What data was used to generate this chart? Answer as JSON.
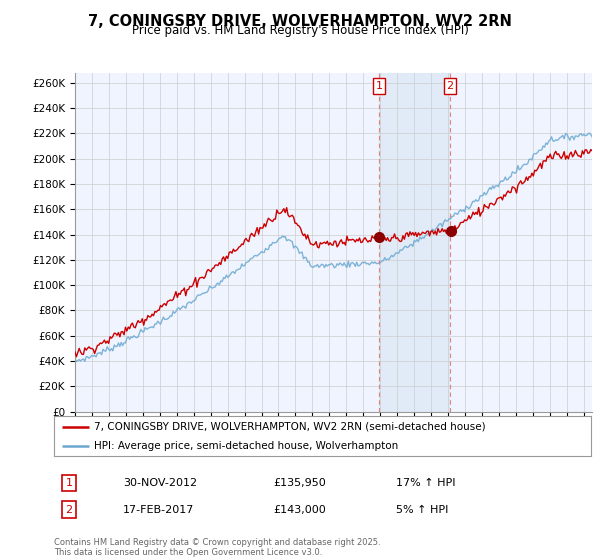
{
  "title": "7, CONINGSBY DRIVE, WOLVERHAMPTON, WV2 2RN",
  "subtitle": "Price paid vs. HM Land Registry's House Price Index (HPI)",
  "ylabel_ticks": [
    "£0",
    "£20K",
    "£40K",
    "£60K",
    "£80K",
    "£100K",
    "£120K",
    "£140K",
    "£160K",
    "£180K",
    "£200K",
    "£220K",
    "£240K",
    "£260K"
  ],
  "ytick_values": [
    0,
    20000,
    40000,
    60000,
    80000,
    100000,
    120000,
    140000,
    160000,
    180000,
    200000,
    220000,
    240000,
    260000
  ],
  "ylim": [
    0,
    268000
  ],
  "xlim_start": 1995.0,
  "xlim_end": 2025.5,
  "xticks": [
    1995,
    1996,
    1997,
    1998,
    1999,
    2000,
    2001,
    2002,
    2003,
    2004,
    2005,
    2006,
    2007,
    2008,
    2009,
    2010,
    2011,
    2012,
    2013,
    2014,
    2015,
    2016,
    2017,
    2018,
    2019,
    2020,
    2021,
    2022,
    2023,
    2024,
    2025
  ],
  "red_color": "#cc0000",
  "blue_color": "#6aa8d0",
  "shade_color": "#dce8f5",
  "marker1_date": 2012.92,
  "marker1_price": 135950,
  "marker1_label": "1",
  "marker2_date": 2017.12,
  "marker2_price": 143000,
  "marker2_label": "2",
  "legend_red": "7, CONINGSBY DRIVE, WOLVERHAMPTON, WV2 2RN (semi-detached house)",
  "legend_blue": "HPI: Average price, semi-detached house, Wolverhampton",
  "annotation1_num": "1",
  "annotation1_date": "30-NOV-2012",
  "annotation1_price": "£135,950",
  "annotation1_hpi": "17% ↑ HPI",
  "annotation2_num": "2",
  "annotation2_date": "17-FEB-2017",
  "annotation2_price": "£143,000",
  "annotation2_hpi": "5% ↑ HPI",
  "footer": "Contains HM Land Registry data © Crown copyright and database right 2025.\nThis data is licensed under the Open Government Licence v3.0.",
  "background_color": "#ffffff",
  "grid_color": "#cccccc",
  "plot_bg": "#f0f4ff"
}
